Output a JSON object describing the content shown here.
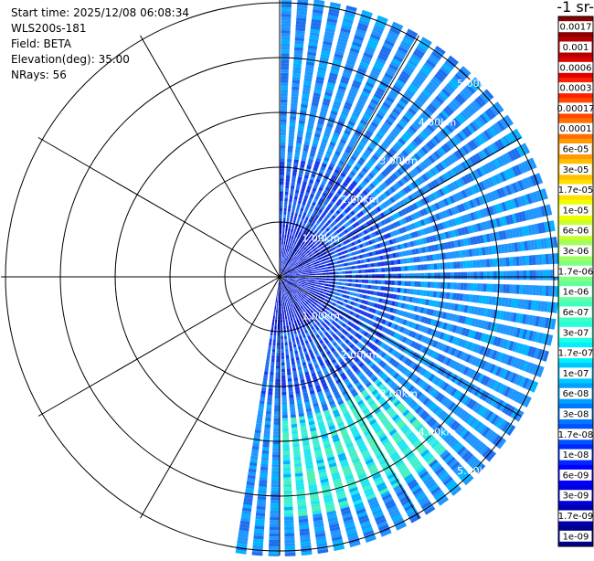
{
  "header": {
    "start_time": "Start time: 2025/12/08 06:08:34",
    "instrument": "WLS200s-181",
    "field": "Field: BETA",
    "elevation": "Elevation(deg): 35.00",
    "nrays": "NRays: 56"
  },
  "colorbar": {
    "unit_label": "-1 sr-",
    "labels": [
      "0.0017",
      "0.001",
      "0.0006",
      "0.0003",
      "0.00017",
      "0.0001",
      "6e-05",
      "3e-05",
      "1.7e-05",
      "1e-05",
      "6e-06",
      "3e-06",
      "1.7e-06",
      "1e-06",
      "6e-07",
      "3e-07",
      "1.7e-07",
      "1e-07",
      "6e-08",
      "3e-08",
      "1.7e-08",
      "1e-08",
      "6e-09",
      "3e-09",
      "1.7e-09",
      "1e-09"
    ],
    "colors": [
      "#8b0000",
      "#b20000",
      "#e00000",
      "#ff2000",
      "#ff4a00",
      "#ff7000",
      "#ff9a00",
      "#ffc000",
      "#ffe000",
      "#f0ff00",
      "#c8ff30",
      "#a0ff60",
      "#80ff80",
      "#60ffa0",
      "#40ffc0",
      "#20ffe0",
      "#00f0ff",
      "#00c8ff",
      "#00a0ff",
      "#0078ff",
      "#0050ff",
      "#0028ff",
      "#0000ff",
      "#0000d8",
      "#0000b0",
      "#000088"
    ]
  },
  "chart_data": {
    "type": "heatmap",
    "subtype": "PPI polar scan",
    "field": "BETA",
    "elevation_deg": 35.0,
    "n_rays": 56,
    "azimuth_coverage_deg": [
      0,
      190
    ],
    "range_rings_km": [
      1,
      2,
      3,
      4,
      5
    ],
    "range_ring_labels": [
      "1.00km",
      "2.00km",
      "3.00km",
      "4.00km",
      "5.00km"
    ],
    "max_range_km": 5.1,
    "value_range": [
      1e-09,
      0.0017
    ],
    "dominant_values": "about 1e-08 to 1e-07, strongest near 1.7e-07 to 6e-07 between 3 and 4 km range at azimuths 140-175 deg",
    "grid": "polar rings and 30-degree spokes",
    "legend": "right colorbar"
  }
}
